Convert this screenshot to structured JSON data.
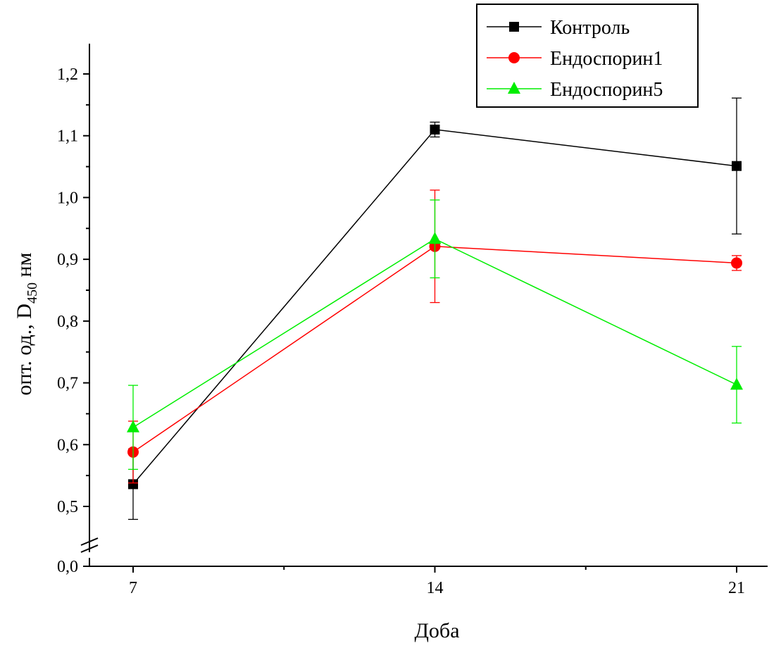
{
  "chart_data": {
    "type": "line",
    "xlabel": "Доба",
    "ylabel": {
      "main": "опт. од., D",
      "subscript": "450",
      "suffix": " нм"
    },
    "x": [
      7,
      14,
      21
    ],
    "x_tick_labels": [
      "7",
      "14",
      "21"
    ],
    "xlim": [
      6,
      22
    ],
    "ylim": [
      0.45,
      1.25
    ],
    "y_ticks": [
      0.5,
      0.6,
      0.7,
      0.8,
      0.9,
      1.0,
      1.1,
      1.2
    ],
    "y_tick_labels": [
      "0,5",
      "0,6",
      "0,7",
      "0,8",
      "0,9",
      "1,0",
      "1,1",
      "1,2"
    ],
    "y_break": {
      "below": 0.5,
      "baseline_value": 0.0,
      "baseline_label": "0,0"
    },
    "grid": false,
    "legend_position": "top-right",
    "series": [
      {
        "name": "Контроль",
        "color": "#000000",
        "marker": "square",
        "values": [
          0.536,
          1.11,
          1.051
        ],
        "errors": [
          0.057,
          0.012,
          0.11
        ]
      },
      {
        "name": "Ендоспорин1",
        "color": "#ff0000",
        "marker": "circle",
        "values": [
          0.588,
          0.921,
          0.894
        ],
        "errors": [
          0.05,
          0.091,
          0.012
        ]
      },
      {
        "name": "Ендоспорин5",
        "color": "#00ee00",
        "marker": "triangle",
        "values": [
          0.628,
          0.933,
          0.697
        ],
        "errors": [
          0.068,
          0.063,
          0.062
        ]
      }
    ]
  }
}
